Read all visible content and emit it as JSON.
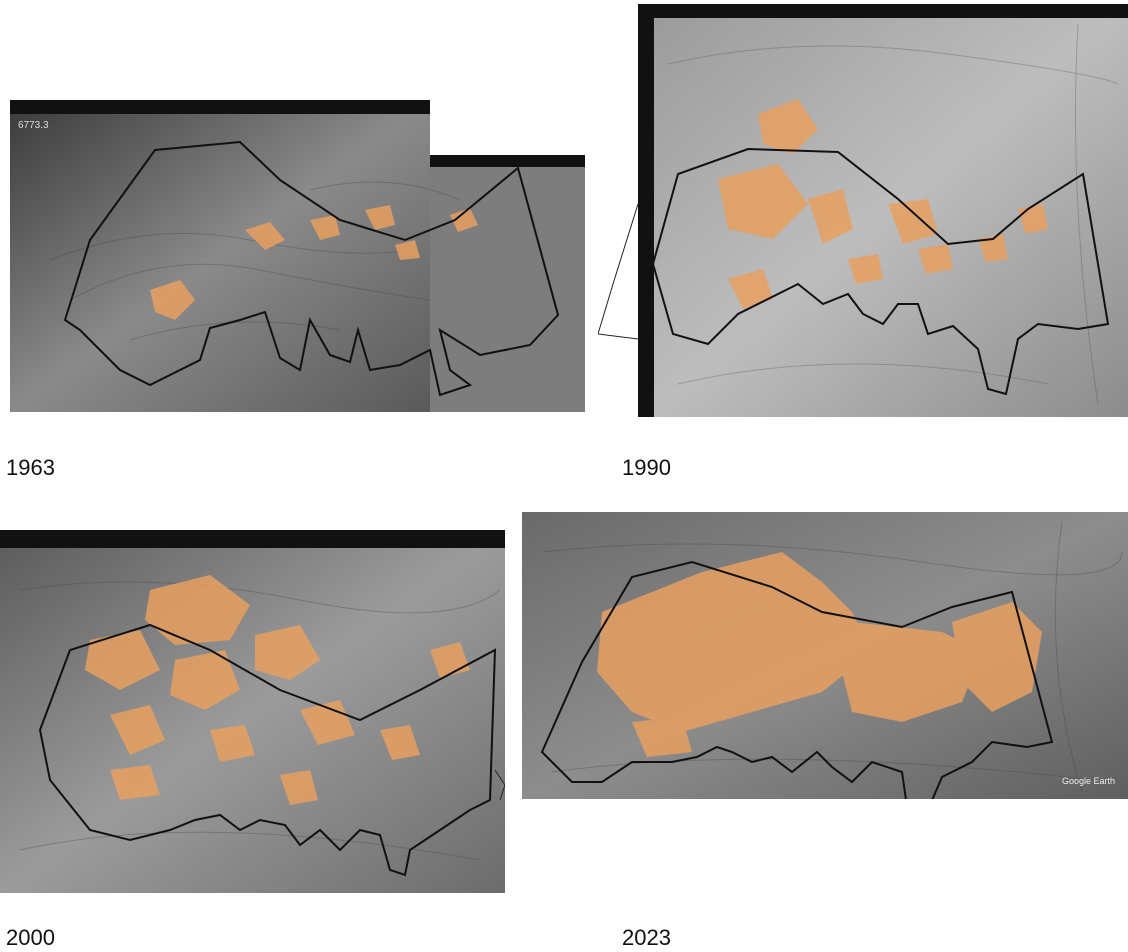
{
  "panels": [
    {
      "year": "1963",
      "photo_overlay": "1963 aerial photograph",
      "image_text": [
        "6773.3"
      ]
    },
    {
      "year": "1990",
      "photo_overlay": "1990 aerial photograph"
    },
    {
      "year": "2000",
      "photo_overlay": "2000 aerial photograph"
    },
    {
      "year": "2023",
      "photo_overlay": "2023 satellite image",
      "image_text": [
        "Google Earth"
      ]
    }
  ],
  "colors": {
    "highlight_area": "#e8a060",
    "boundary_line": "#111111",
    "photo_dark": "#2a2a2a",
    "photo_light": "#b8b8b8"
  }
}
